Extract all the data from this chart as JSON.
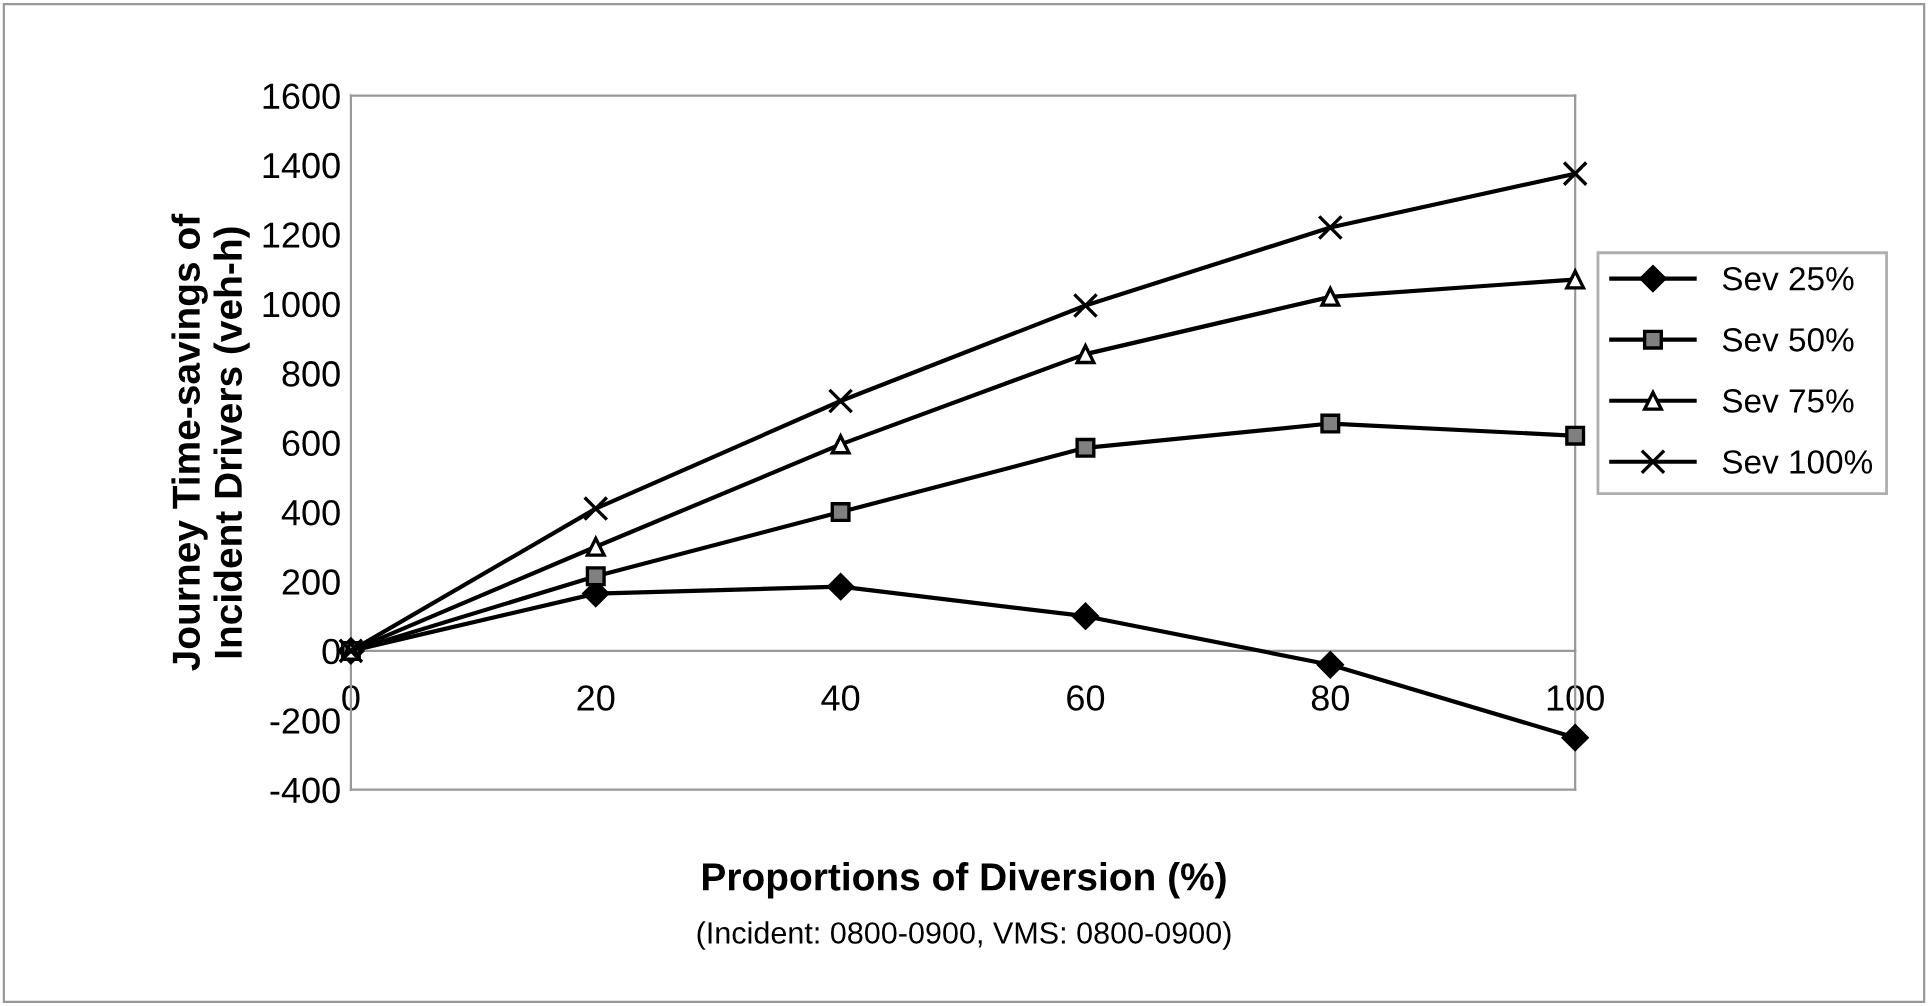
{
  "chart_data": {
    "type": "line",
    "xlabel": "Proportions of Diversion (%)",
    "ylabel": "Journey Time-savings of\nIncident Drivers (veh-h)",
    "annotations": [
      "(Incident: 0800-0900, VMS: 0800-0900)"
    ],
    "categories": [
      "0",
      "20",
      "40",
      "60",
      "80",
      "100"
    ],
    "series": [
      {
        "name": "Sev 25%",
        "color": "#000000",
        "marker": "diamond",
        "values": [
          0,
          165,
          185,
          100,
          -40,
          -250
        ]
      },
      {
        "name": "Sev 50%",
        "color": "#808080",
        "marker": "square",
        "values": [
          0,
          215,
          400,
          585,
          655,
          620
        ]
      },
      {
        "name": "Sev 75%",
        "color": "#ffffff",
        "marker": "triangle",
        "values": [
          0,
          300,
          595,
          855,
          1020,
          1070
        ]
      },
      {
        "name": "Sev 100%",
        "color": "#000000",
        "marker": "cross",
        "values": [
          0,
          410,
          720,
          995,
          1220,
          1375
        ]
      }
    ],
    "ylim": [
      -400,
      1600
    ],
    "yticks": [
      -400,
      -200,
      0,
      200,
      400,
      600,
      800,
      1000,
      1200,
      1400,
      1600
    ],
    "grid": false,
    "legend": "right",
    "line_style": "solid"
  }
}
